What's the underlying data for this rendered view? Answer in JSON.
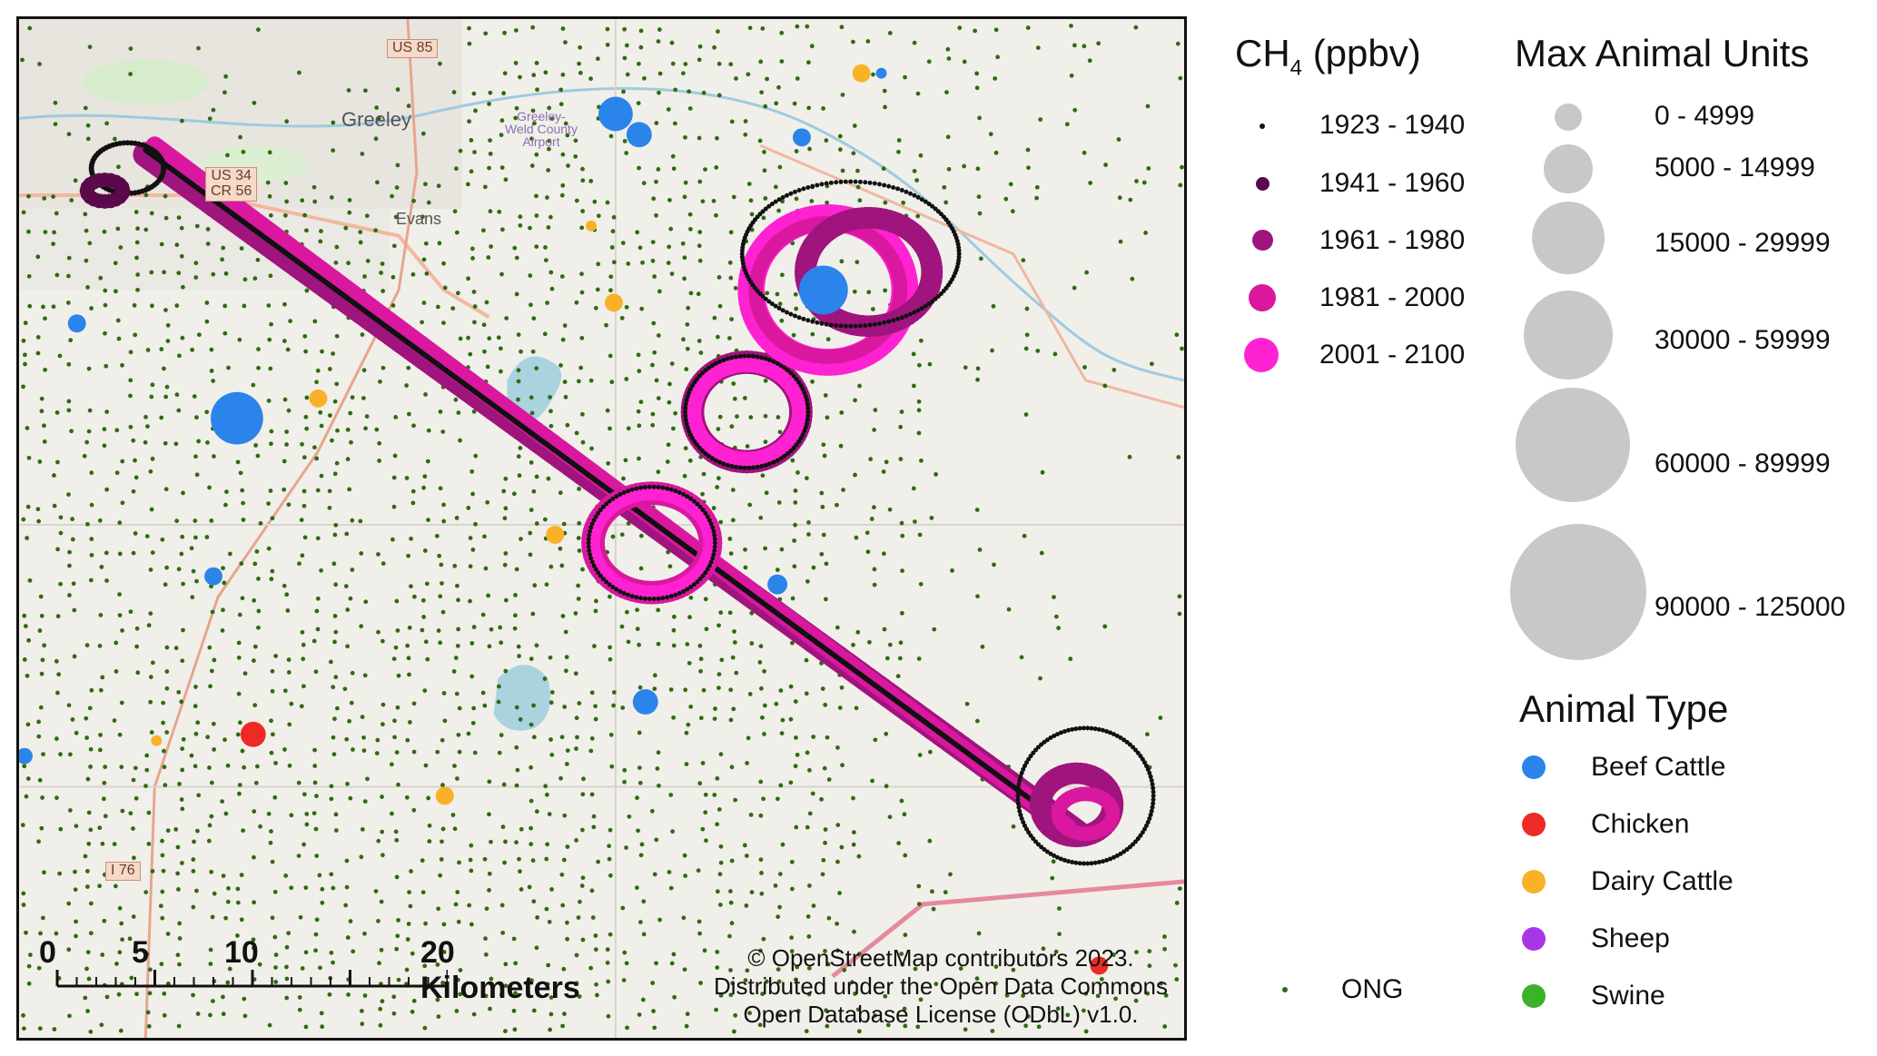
{
  "map": {
    "place_labels": [
      {
        "name": "greeley",
        "text": "Greeley"
      },
      {
        "name": "evans",
        "text": "Evans"
      },
      {
        "name": "airport",
        "text": "Greeley-Weld County Airport"
      }
    ],
    "road_shields": [
      {
        "name": "us85",
        "text": "US 85"
      },
      {
        "name": "us34",
        "text": "US 34\nCR 56"
      },
      {
        "name": "i76",
        "text": "I 76"
      }
    ],
    "scalebar": {
      "ticks": [
        "0",
        "5",
        "10",
        "20 Kilometers"
      ]
    },
    "attribution": "© OpenStreetMap contributors 2023. Distributed under the Open Data Commons Open Database License (ODbL) v1.0."
  },
  "legend_ch4": {
    "title_main": "CH",
    "title_sub": "4",
    "title_unit": " (ppbv)",
    "classes": [
      {
        "label": "1923 - 1940",
        "color": "#111111"
      },
      {
        "label": "1941 - 1960",
        "color": "#5a0a4a"
      },
      {
        "label": "1961 - 1980",
        "color": "#a0147e"
      },
      {
        "label": "1981 - 2000",
        "color": "#d9189f"
      },
      {
        "label": "2001 - 2100",
        "color": "#ff22d2"
      }
    ]
  },
  "legend_units": {
    "title": "Max Animal Units",
    "classes": [
      "0 - 4999",
      "5000 - 14999",
      "15000 - 29999",
      "30000 - 59999",
      "60000 - 89999",
      "90000 - 125000"
    ],
    "color": "#c8c8c8"
  },
  "legend_type": {
    "title": "Animal Type",
    "classes": [
      {
        "label": "Beef Cattle",
        "color": "#2b84ea"
      },
      {
        "label": "Chicken",
        "color": "#ee2a24"
      },
      {
        "label": "Dairy Cattle",
        "color": "#f9b128"
      },
      {
        "label": "Sheep",
        "color": "#a936e6"
      },
      {
        "label": "Swine",
        "color": "#3ab229"
      }
    ]
  },
  "legend_ong": {
    "label": "ONG",
    "color": "#2e6b12"
  }
}
